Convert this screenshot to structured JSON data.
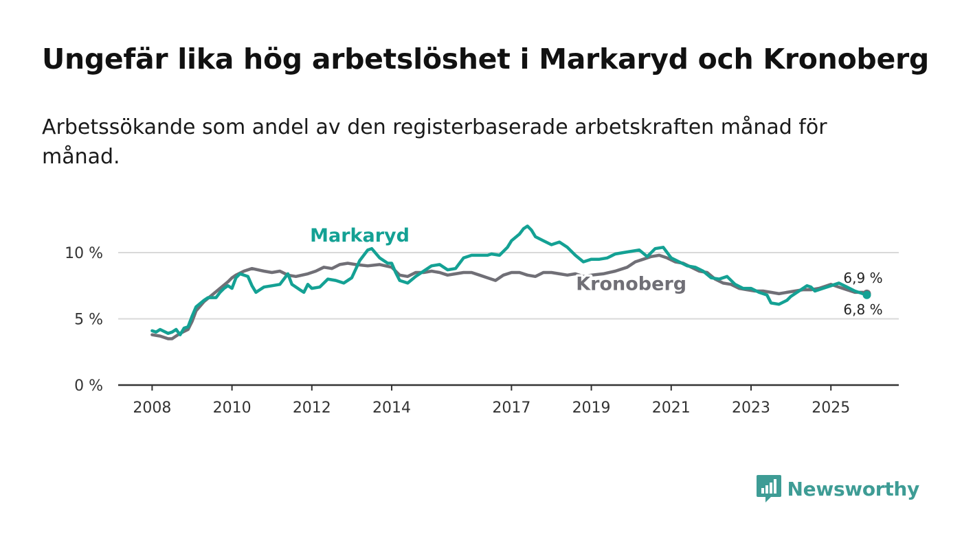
{
  "title": "Ungefär lika hög arbetslöshet i Markaryd och Kronoberg",
  "subtitle": "Arbetssökande som andel av den registerbaserade arbetskraften månad för månad.",
  "brand": {
    "name": "Newsworthy",
    "color": "#3e9c95",
    "icon": "bar-chart-speech-bubble-icon"
  },
  "chart_data": {
    "type": "line",
    "x_ticks": [
      2008,
      2010,
      2012,
      2014,
      2017,
      2019,
      2021,
      2023,
      2025
    ],
    "y_ticks": [
      {
        "value": 0,
        "label": "0 %"
      },
      {
        "value": 5,
        "label": "5 %"
      },
      {
        "value": 10,
        "label": "10 %"
      }
    ],
    "xlim": [
      2007.15,
      2026.7
    ],
    "ylim": [
      0,
      12.8
    ],
    "grid": true,
    "series": [
      {
        "name": "Kronoberg",
        "color": "#706f76",
        "end_label": "6,9 %",
        "points": [
          [
            2008.0,
            3.8
          ],
          [
            2008.2,
            3.7
          ],
          [
            2008.4,
            3.5
          ],
          [
            2008.5,
            3.5
          ],
          [
            2008.7,
            3.9
          ],
          [
            2008.9,
            4.2
          ],
          [
            2009.0,
            4.8
          ],
          [
            2009.1,
            5.6
          ],
          [
            2009.3,
            6.3
          ],
          [
            2009.5,
            6.8
          ],
          [
            2009.7,
            7.3
          ],
          [
            2009.9,
            7.8
          ],
          [
            2010.0,
            8.1
          ],
          [
            2010.1,
            8.3
          ],
          [
            2010.3,
            8.6
          ],
          [
            2010.5,
            8.8
          ],
          [
            2010.8,
            8.6
          ],
          [
            2011.0,
            8.5
          ],
          [
            2011.2,
            8.6
          ],
          [
            2011.4,
            8.3
          ],
          [
            2011.6,
            8.2
          ],
          [
            2011.9,
            8.4
          ],
          [
            2012.1,
            8.6
          ],
          [
            2012.3,
            8.9
          ],
          [
            2012.5,
            8.8
          ],
          [
            2012.7,
            9.1
          ],
          [
            2012.9,
            9.2
          ],
          [
            2013.1,
            9.1
          ],
          [
            2013.4,
            9.0
          ],
          [
            2013.7,
            9.1
          ],
          [
            2014.0,
            8.9
          ],
          [
            2014.2,
            8.3
          ],
          [
            2014.4,
            8.2
          ],
          [
            2014.6,
            8.5
          ],
          [
            2014.8,
            8.5
          ],
          [
            2015.0,
            8.6
          ],
          [
            2015.2,
            8.5
          ],
          [
            2015.4,
            8.3
          ],
          [
            2015.6,
            8.4
          ],
          [
            2015.8,
            8.5
          ],
          [
            2016.0,
            8.5
          ],
          [
            2016.2,
            8.3
          ],
          [
            2016.4,
            8.1
          ],
          [
            2016.6,
            7.9
          ],
          [
            2016.8,
            8.3
          ],
          [
            2017.0,
            8.5
          ],
          [
            2017.2,
            8.5
          ],
          [
            2017.4,
            8.3
          ],
          [
            2017.6,
            8.2
          ],
          [
            2017.8,
            8.5
          ],
          [
            2018.0,
            8.5
          ],
          [
            2018.2,
            8.4
          ],
          [
            2018.4,
            8.3
          ],
          [
            2018.6,
            8.4
          ],
          [
            2018.8,
            8.2
          ],
          [
            2019.0,
            8.3
          ],
          [
            2019.3,
            8.4
          ],
          [
            2019.6,
            8.6
          ],
          [
            2019.9,
            8.9
          ],
          [
            2020.1,
            9.3
          ],
          [
            2020.3,
            9.5
          ],
          [
            2020.5,
            9.7
          ],
          [
            2020.7,
            9.8
          ],
          [
            2020.9,
            9.6
          ],
          [
            2021.1,
            9.3
          ],
          [
            2021.3,
            9.2
          ],
          [
            2021.5,
            8.9
          ],
          [
            2021.7,
            8.6
          ],
          [
            2021.9,
            8.5
          ],
          [
            2022.1,
            8.0
          ],
          [
            2022.3,
            7.7
          ],
          [
            2022.5,
            7.6
          ],
          [
            2022.7,
            7.3
          ],
          [
            2022.9,
            7.2
          ],
          [
            2023.1,
            7.1
          ],
          [
            2023.3,
            7.1
          ],
          [
            2023.5,
            7.0
          ],
          [
            2023.7,
            6.9
          ],
          [
            2023.9,
            7.0
          ],
          [
            2024.1,
            7.1
          ],
          [
            2024.3,
            7.2
          ],
          [
            2024.5,
            7.2
          ],
          [
            2024.7,
            7.3
          ],
          [
            2024.9,
            7.5
          ],
          [
            2025.0,
            7.6
          ],
          [
            2025.2,
            7.4
          ],
          [
            2025.4,
            7.2
          ],
          [
            2025.6,
            7.0
          ],
          [
            2025.8,
            7.0
          ],
          [
            2025.9,
            6.9
          ]
        ]
      },
      {
        "name": "Markaryd",
        "color": "#14a194",
        "end_label": "6,8 %",
        "points": [
          [
            2008.0,
            4.1
          ],
          [
            2008.1,
            4.0
          ],
          [
            2008.2,
            4.2
          ],
          [
            2008.4,
            3.9
          ],
          [
            2008.5,
            4.0
          ],
          [
            2008.6,
            4.2
          ],
          [
            2008.7,
            3.8
          ],
          [
            2008.8,
            4.3
          ],
          [
            2008.9,
            4.4
          ],
          [
            2009.0,
            5.2
          ],
          [
            2009.1,
            5.9
          ],
          [
            2009.3,
            6.4
          ],
          [
            2009.4,
            6.6
          ],
          [
            2009.6,
            6.6
          ],
          [
            2009.7,
            7.0
          ],
          [
            2009.8,
            7.3
          ],
          [
            2009.9,
            7.5
          ],
          [
            2010.0,
            7.3
          ],
          [
            2010.1,
            8.1
          ],
          [
            2010.2,
            8.4
          ],
          [
            2010.4,
            8.2
          ],
          [
            2010.5,
            7.5
          ],
          [
            2010.6,
            7.0
          ],
          [
            2010.8,
            7.4
          ],
          [
            2011.0,
            7.5
          ],
          [
            2011.2,
            7.6
          ],
          [
            2011.4,
            8.4
          ],
          [
            2011.5,
            7.6
          ],
          [
            2011.7,
            7.2
          ],
          [
            2011.8,
            7.0
          ],
          [
            2011.9,
            7.6
          ],
          [
            2012.0,
            7.3
          ],
          [
            2012.2,
            7.4
          ],
          [
            2012.4,
            8.0
          ],
          [
            2012.6,
            7.9
          ],
          [
            2012.8,
            7.7
          ],
          [
            2013.0,
            8.1
          ],
          [
            2013.2,
            9.4
          ],
          [
            2013.4,
            10.2
          ],
          [
            2013.5,
            10.3
          ],
          [
            2013.7,
            9.6
          ],
          [
            2013.9,
            9.2
          ],
          [
            2014.0,
            9.2
          ],
          [
            2014.1,
            8.5
          ],
          [
            2014.2,
            7.9
          ],
          [
            2014.4,
            7.7
          ],
          [
            2014.6,
            8.2
          ],
          [
            2014.8,
            8.6
          ],
          [
            2015.0,
            9.0
          ],
          [
            2015.2,
            9.1
          ],
          [
            2015.4,
            8.7
          ],
          [
            2015.6,
            8.8
          ],
          [
            2015.8,
            9.6
          ],
          [
            2016.0,
            9.8
          ],
          [
            2016.2,
            9.8
          ],
          [
            2016.4,
            9.8
          ],
          [
            2016.5,
            9.9
          ],
          [
            2016.7,
            9.8
          ],
          [
            2016.9,
            10.4
          ],
          [
            2017.0,
            10.9
          ],
          [
            2017.2,
            11.4
          ],
          [
            2017.3,
            11.8
          ],
          [
            2017.4,
            12.0
          ],
          [
            2017.5,
            11.7
          ],
          [
            2017.6,
            11.2
          ],
          [
            2017.8,
            10.9
          ],
          [
            2018.0,
            10.6
          ],
          [
            2018.2,
            10.8
          ],
          [
            2018.4,
            10.4
          ],
          [
            2018.6,
            9.8
          ],
          [
            2018.8,
            9.3
          ],
          [
            2019.0,
            9.5
          ],
          [
            2019.2,
            9.5
          ],
          [
            2019.4,
            9.6
          ],
          [
            2019.6,
            9.9
          ],
          [
            2019.8,
            10.0
          ],
          [
            2020.0,
            10.1
          ],
          [
            2020.2,
            10.2
          ],
          [
            2020.4,
            9.7
          ],
          [
            2020.6,
            10.3
          ],
          [
            2020.8,
            10.4
          ],
          [
            2021.0,
            9.6
          ],
          [
            2021.2,
            9.3
          ],
          [
            2021.4,
            9.0
          ],
          [
            2021.6,
            8.9
          ],
          [
            2021.8,
            8.6
          ],
          [
            2022.0,
            8.1
          ],
          [
            2022.2,
            8.0
          ],
          [
            2022.4,
            8.2
          ],
          [
            2022.6,
            7.6
          ],
          [
            2022.8,
            7.3
          ],
          [
            2023.0,
            7.3
          ],
          [
            2023.2,
            7.0
          ],
          [
            2023.4,
            6.8
          ],
          [
            2023.5,
            6.2
          ],
          [
            2023.7,
            6.1
          ],
          [
            2023.9,
            6.4
          ],
          [
            2024.0,
            6.7
          ],
          [
            2024.2,
            7.1
          ],
          [
            2024.4,
            7.5
          ],
          [
            2024.5,
            7.4
          ],
          [
            2024.6,
            7.1
          ],
          [
            2024.8,
            7.3
          ],
          [
            2025.0,
            7.5
          ],
          [
            2025.2,
            7.7
          ],
          [
            2025.4,
            7.4
          ],
          [
            2025.6,
            7.1
          ],
          [
            2025.8,
            6.9
          ],
          [
            2025.9,
            6.8
          ]
        ]
      }
    ]
  }
}
